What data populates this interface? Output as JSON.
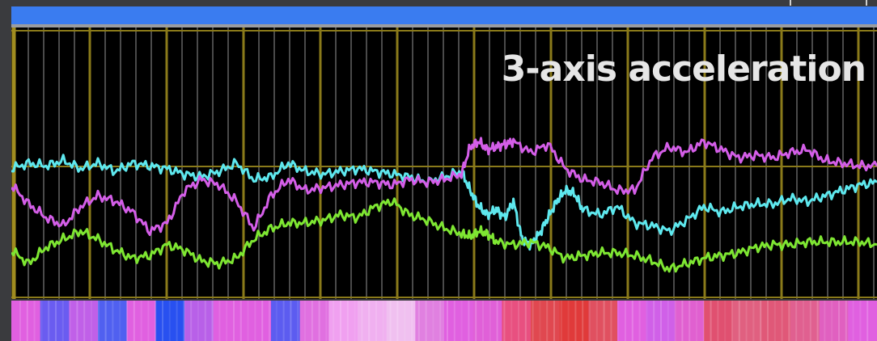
{
  "playback": {
    "progress": 1.0,
    "color": "#3a7cf0"
  },
  "chart_data": {
    "type": "line",
    "title": "3-axis acceleration",
    "xlim": [
      0,
      100
    ],
    "ylim": [
      0,
      100
    ],
    "grid": true,
    "series": [
      {
        "color": "#5ee8ee",
        "x": [
          0,
          2,
          4,
          6,
          8,
          10,
          12,
          14,
          16,
          18,
          20,
          22,
          24,
          26,
          28,
          30,
          32,
          34,
          36,
          38,
          40,
          42,
          44,
          46,
          48,
          50,
          52,
          53,
          54,
          55,
          56,
          57,
          58,
          59,
          60,
          61,
          62,
          63,
          64,
          65,
          66,
          68,
          70,
          72,
          74,
          76,
          78,
          80,
          82,
          84,
          86,
          88,
          90,
          92,
          94,
          96,
          98,
          100
        ],
        "y": [
          48,
          50,
          49,
          51,
          48,
          50,
          47,
          50,
          49,
          48,
          46,
          45,
          47,
          50,
          44,
          45,
          50,
          47,
          46,
          47,
          48,
          47,
          46,
          45,
          43,
          45,
          47,
          40,
          34,
          31,
          33,
          30,
          36,
          22,
          20,
          24,
          30,
          36,
          40,
          39,
          33,
          31,
          34,
          28,
          27,
          25,
          29,
          34,
          32,
          34,
          35,
          35,
          37,
          36,
          38,
          40,
          42,
          43
        ]
      },
      {
        "color": "#d45ee8",
        "x": [
          0,
          2,
          4,
          6,
          8,
          10,
          12,
          14,
          16,
          18,
          20,
          22,
          24,
          26,
          28,
          30,
          32,
          34,
          36,
          38,
          40,
          42,
          44,
          46,
          48,
          50,
          52,
          53,
          54,
          55,
          56,
          57,
          58,
          60,
          62,
          64,
          66,
          68,
          70,
          72,
          74,
          76,
          78,
          80,
          82,
          84,
          86,
          88,
          90,
          92,
          94,
          96,
          98,
          100
        ],
        "y": [
          42,
          35,
          30,
          27,
          34,
          38,
          36,
          32,
          25,
          28,
          40,
          44,
          42,
          36,
          26,
          38,
          44,
          40,
          41,
          42,
          43,
          43,
          42,
          44,
          43,
          44,
          46,
          56,
          58,
          55,
          56,
          57,
          58,
          54,
          57,
          48,
          44,
          43,
          40,
          40,
          52,
          56,
          54,
          58,
          55,
          52,
          53,
          52,
          54,
          55,
          51,
          50,
          49,
          49
        ]
      },
      {
        "color": "#7ee632",
        "x": [
          0,
          2,
          4,
          6,
          8,
          10,
          12,
          14,
          16,
          18,
          20,
          22,
          24,
          26,
          28,
          30,
          32,
          34,
          36,
          38,
          40,
          42,
          44,
          46,
          48,
          50,
          52,
          53,
          54,
          55,
          56,
          58,
          60,
          62,
          64,
          66,
          68,
          70,
          72,
          74,
          76,
          78,
          80,
          82,
          84,
          86,
          88,
          90,
          92,
          94,
          96,
          98,
          100
        ],
        "y": [
          18,
          13,
          19,
          22,
          25,
          22,
          18,
          15,
          16,
          20,
          18,
          14,
          13,
          15,
          22,
          26,
          28,
          28,
          29,
          31,
          30,
          34,
          36,
          31,
          29,
          26,
          24,
          23,
          25,
          24,
          21,
          20,
          21,
          19,
          15,
          16,
          17,
          17,
          16,
          14,
          11,
          13,
          15,
          16,
          17,
          19,
          20,
          20,
          21,
          21,
          21,
          21,
          20
        ]
      }
    ]
  },
  "heat_strip": {
    "colors": [
      "#e060e0",
      "#6a5cf0",
      "#c060e8",
      "#5060f0",
      "#e060e0",
      "#2850f0",
      "#b860e8",
      "#e060e0",
      "#e060e0",
      "#5c5cf0",
      "#e070e0",
      "#f0a0f0",
      "#f0b0f0",
      "#f0c0f0",
      "#e080e0",
      "#e060e0",
      "#e060d8",
      "#e85080",
      "#e04850",
      "#e03a3a",
      "#e05060",
      "#e060e0",
      "#d060e8",
      "#e060d0",
      "#e05070",
      "#e06080",
      "#e05878",
      "#e06090",
      "#e060c0",
      "#e060e0"
    ]
  }
}
